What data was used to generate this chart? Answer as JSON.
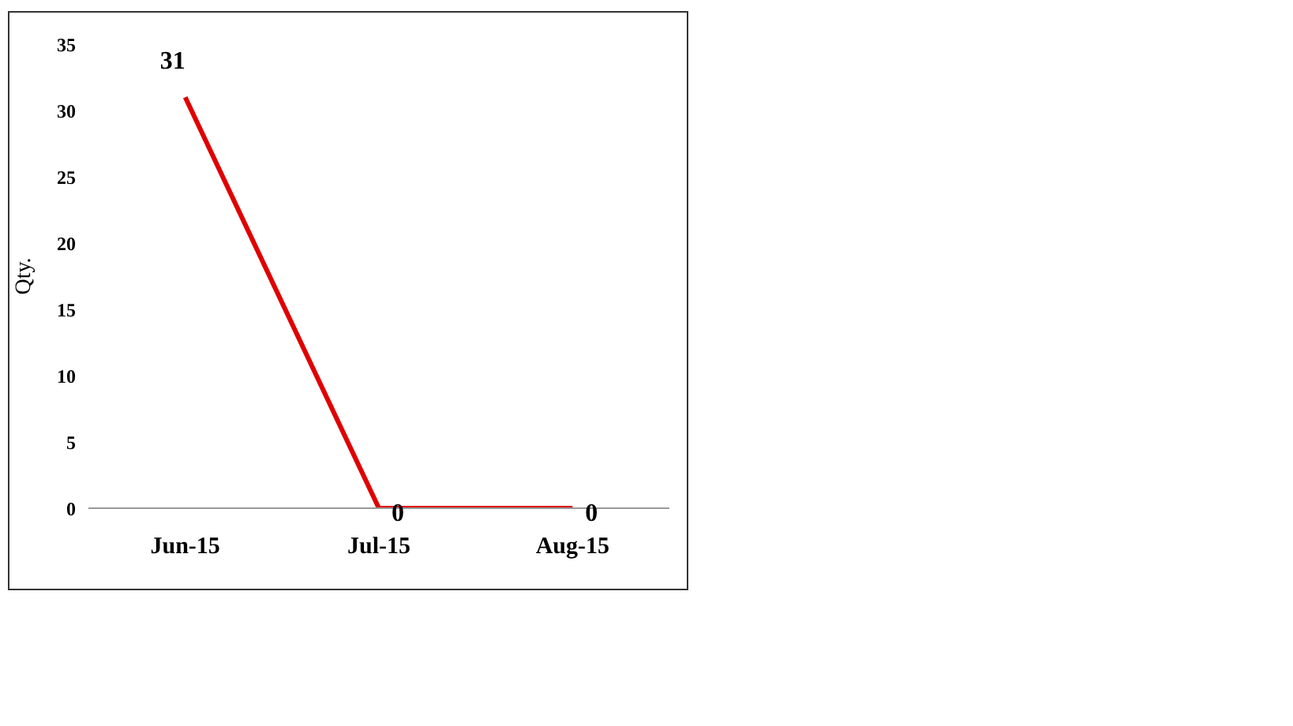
{
  "chart_data": {
    "type": "line",
    "ylabel": "Qty.",
    "categories": [
      "Jun-15",
      "Jul-15",
      "Aug-15"
    ],
    "series": [
      {
        "color": "#e00000",
        "values": [
          31,
          0,
          0
        ]
      }
    ],
    "ylim": [
      0,
      35
    ],
    "yticks": [
      0,
      5,
      10,
      15,
      20,
      25,
      30,
      35
    ],
    "grid": false,
    "legend": false,
    "marker": "none",
    "line_style": "solid",
    "data_labels": true
  }
}
